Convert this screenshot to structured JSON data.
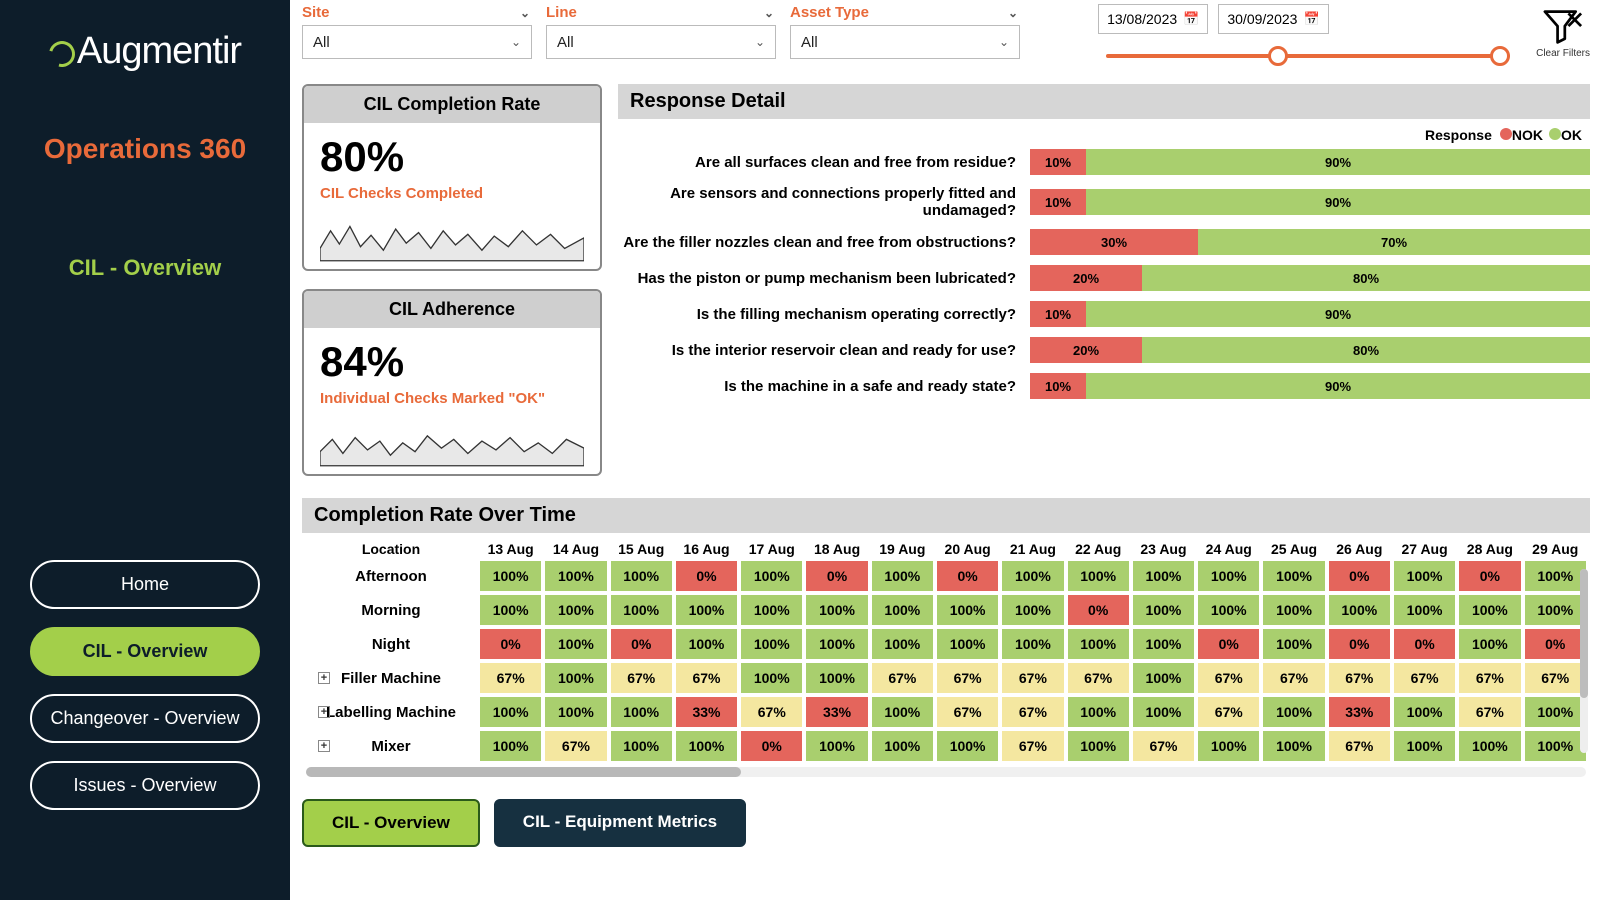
{
  "brand": {
    "name": "Augmentir"
  },
  "app_title": "Operations 360",
  "section_label": "CIL - Overview",
  "nav": [
    {
      "label": "Home",
      "active": false
    },
    {
      "label": "CIL - Overview",
      "active": true
    },
    {
      "label": "Changeover - Overview",
      "active": false
    },
    {
      "label": "Issues - Overview",
      "active": false
    }
  ],
  "filters": {
    "site": {
      "label": "Site",
      "value": "All"
    },
    "line": {
      "label": "Line",
      "value": "All"
    },
    "asset": {
      "label": "Asset Type",
      "value": "All"
    },
    "date_from": "13/08/2023",
    "date_to": "30/09/2023",
    "clear_label": "Clear Filters"
  },
  "colors": {
    "accent_orange": "#e86a3a",
    "accent_green": "#a3cf4a",
    "nok": "#e4655c",
    "ok": "#a9cf6e",
    "mid": "#f4e7a0"
  },
  "kpis": {
    "completion": {
      "title": "CIL Completion Rate",
      "value": "80%",
      "subtitle": "CIL Checks Completed"
    },
    "adherence": {
      "title": "CIL Adherence",
      "value": "84%",
      "subtitle": "Individual Checks Marked \"OK\""
    }
  },
  "response_detail": {
    "title": "Response Detail",
    "legend_label": "Response",
    "legend": [
      {
        "name": "NOK",
        "color": "#e4655c"
      },
      {
        "name": "OK",
        "color": "#a9cf6e"
      }
    ],
    "rows": [
      {
        "q": "Are all surfaces clean and free from residue?",
        "nok": 10,
        "ok": 90
      },
      {
        "q": "Are sensors and connections properly fitted and undamaged?",
        "nok": 10,
        "ok": 90
      },
      {
        "q": "Are the filler nozzles clean and free from obstructions?",
        "nok": 30,
        "ok": 70
      },
      {
        "q": "Has the piston or pump mechanism been lubricated?",
        "nok": 20,
        "ok": 80
      },
      {
        "q": "Is the filling mechanism operating correctly?",
        "nok": 10,
        "ok": 90
      },
      {
        "q": "Is the interior reservoir clean and ready for use?",
        "nok": 20,
        "ok": 80
      },
      {
        "q": "Is the machine in a safe and ready state?",
        "nok": 10,
        "ok": 90
      }
    ]
  },
  "completion_over_time": {
    "title": "Completion Rate Over Time",
    "location_header": "Location",
    "dates": [
      "13 Aug",
      "14 Aug",
      "15 Aug",
      "16 Aug",
      "17 Aug",
      "18 Aug",
      "19 Aug",
      "20 Aug",
      "21 Aug",
      "22 Aug",
      "23 Aug",
      "24 Aug",
      "25 Aug",
      "26 Aug",
      "27 Aug",
      "28 Aug",
      "29 Aug"
    ],
    "rows": [
      {
        "label": "Afternoon",
        "expandable": false,
        "values": [
          100,
          100,
          100,
          0,
          100,
          0,
          100,
          0,
          100,
          100,
          100,
          100,
          100,
          0,
          100,
          0,
          100
        ]
      },
      {
        "label": "Morning",
        "expandable": false,
        "values": [
          100,
          100,
          100,
          100,
          100,
          100,
          100,
          100,
          100,
          0,
          100,
          100,
          100,
          100,
          100,
          100,
          100
        ]
      },
      {
        "label": "Night",
        "expandable": false,
        "values": [
          0,
          100,
          0,
          100,
          100,
          100,
          100,
          100,
          100,
          100,
          100,
          0,
          100,
          0,
          0,
          100,
          0
        ]
      },
      {
        "label": "Filler Machine",
        "expandable": true,
        "values": [
          67,
          100,
          67,
          67,
          100,
          100,
          67,
          67,
          67,
          67,
          100,
          67,
          67,
          67,
          67,
          67,
          67
        ]
      },
      {
        "label": "Labelling Machine",
        "expandable": true,
        "values": [
          100,
          100,
          100,
          33,
          67,
          33,
          100,
          67,
          67,
          100,
          100,
          67,
          100,
          33,
          100,
          67,
          100
        ]
      },
      {
        "label": "Mixer",
        "expandable": true,
        "values": [
          100,
          67,
          100,
          100,
          0,
          100,
          100,
          100,
          67,
          100,
          67,
          100,
          100,
          67,
          100,
          100,
          100
        ]
      }
    ],
    "color_rules": {
      "high": 100,
      "low": 33
    }
  },
  "tabs": [
    {
      "label": "CIL - Overview",
      "active": true
    },
    {
      "label": "CIL - Equipment Metrics",
      "active": false
    }
  ]
}
